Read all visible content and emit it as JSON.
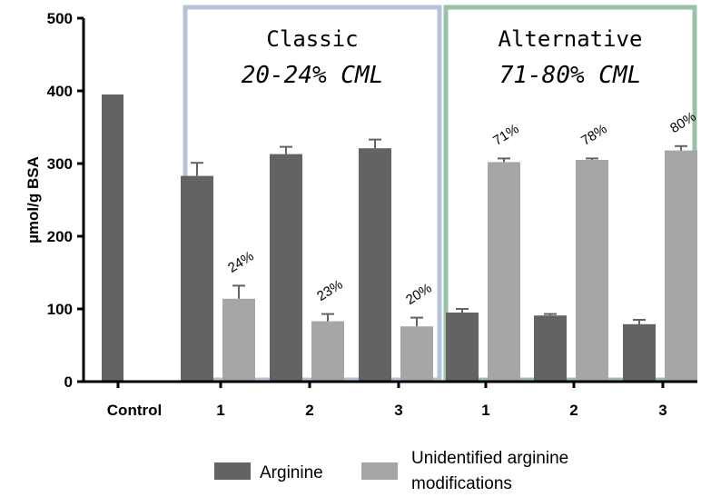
{
  "chart_data": {
    "type": "bar",
    "ylabel": "µmol/g BSA",
    "ylim": [
      0,
      500
    ],
    "yticks": [
      0,
      100,
      200,
      300,
      400,
      500
    ],
    "colors": {
      "arginine": "#636363",
      "unidentified": "#a6a6a7",
      "classic_box": "#b4c2da",
      "alternative_box": "#98c1a8"
    },
    "legend": [
      {
        "key": "arginine",
        "label": "Arginine"
      },
      {
        "key": "unidentified",
        "label_lines": [
          "Unidentified arginine",
          "modifications"
        ]
      }
    ],
    "boxes": [
      {
        "key": "classic",
        "title": "Classic",
        "subtitle": "20-24% CML"
      },
      {
        "key": "alternative",
        "title": "Alternative",
        "subtitle": "71-80% CML"
      }
    ],
    "categories": [
      {
        "label": "Control",
        "arginine": 395,
        "arginine_err": 0,
        "unidentified": null,
        "unidentified_err": null,
        "pct": null
      },
      {
        "label": "1",
        "group": "classic",
        "arginine": 283,
        "arginine_err": 18,
        "unidentified": 114,
        "unidentified_err": 18,
        "pct": "24%"
      },
      {
        "label": "2",
        "group": "classic",
        "arginine": 313,
        "arginine_err": 10,
        "unidentified": 83,
        "unidentified_err": 10,
        "pct": "23%"
      },
      {
        "label": "3",
        "group": "classic",
        "arginine": 321,
        "arginine_err": 12,
        "unidentified": 76,
        "unidentified_err": 12,
        "pct": "20%"
      },
      {
        "label": "1",
        "group": "alternative",
        "arginine": 95,
        "arginine_err": 5,
        "unidentified": 302,
        "unidentified_err": 5,
        "pct": "71%"
      },
      {
        "label": "2",
        "group": "alternative",
        "arginine": 91,
        "arginine_err": 2,
        "unidentified": 305,
        "unidentified_err": 2,
        "pct": "78%"
      },
      {
        "label": "3",
        "group": "alternative",
        "arginine": 79,
        "arginine_err": 6,
        "unidentified": 318,
        "unidentified_err": 6,
        "pct": "80%"
      }
    ]
  }
}
